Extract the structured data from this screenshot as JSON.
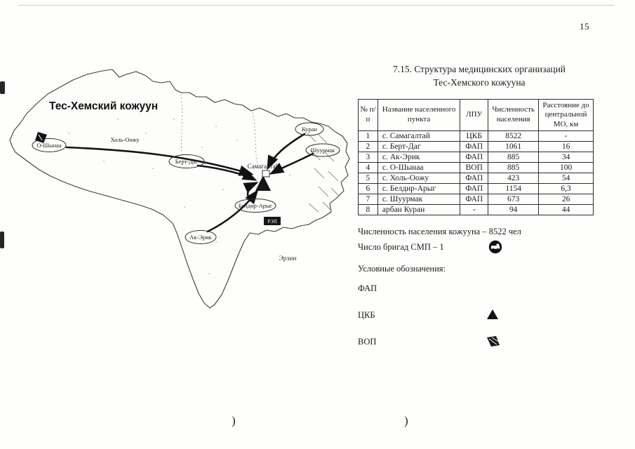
{
  "page": {
    "number": "15",
    "paren_left": ")",
    "paren_right": ")"
  },
  "map": {
    "title": "Тес-Хемский кожуун",
    "station_label": "РЭП",
    "external_label": "Эрзин",
    "settlements": [
      {
        "name": "О-Шынаа"
      },
      {
        "name": "Холь-Оожу"
      },
      {
        "name": "Берт-Даг"
      },
      {
        "name": "Самагалтай"
      },
      {
        "name": "Куран"
      },
      {
        "name": "Шуурмак"
      },
      {
        "name": "Белдир-Арыг"
      },
      {
        "name": "Ак-Эрик"
      }
    ]
  },
  "section_title": {
    "line1": "7.15. Структура медицинских организаций",
    "line2": "Тес-Хемского кожууна"
  },
  "table": {
    "headers": [
      "№ п/п",
      "Название населенного пункта",
      "ЛПУ",
      "Численность населения",
      "Расстояние до центральной МО, км"
    ],
    "rows": [
      [
        "1",
        "с. Самагалтай",
        "ЦКБ",
        "8522",
        "-"
      ],
      [
        "2",
        "с. Берт-Даг",
        "ФАП",
        "1061",
        "16"
      ],
      [
        "3",
        "с. Ак-Эрик",
        "ФАП",
        "885",
        "34"
      ],
      [
        "4",
        "с. О-Шынаа",
        "ВОП",
        "885",
        "100"
      ],
      [
        "5",
        "с. Холь-Оожу",
        "ФАП",
        "423",
        "54"
      ],
      [
        "6",
        "с. Белдир-Арыг",
        "ФАП",
        "1154",
        "6,3"
      ],
      [
        "7",
        "с. Шуурмак",
        "ФАП",
        "673",
        "26"
      ],
      [
        "8",
        "арбан Куран",
        "-",
        "94",
        "44"
      ]
    ]
  },
  "notes": {
    "population": "Численность населения кожууна – 8522 чел",
    "brigades": "Число бригад СМП – 1",
    "legend_title": "Условные обозначения:",
    "legend": [
      {
        "label": "ФАП"
      },
      {
        "label": "ЦКБ"
      },
      {
        "label": "ВОП"
      }
    ]
  }
}
